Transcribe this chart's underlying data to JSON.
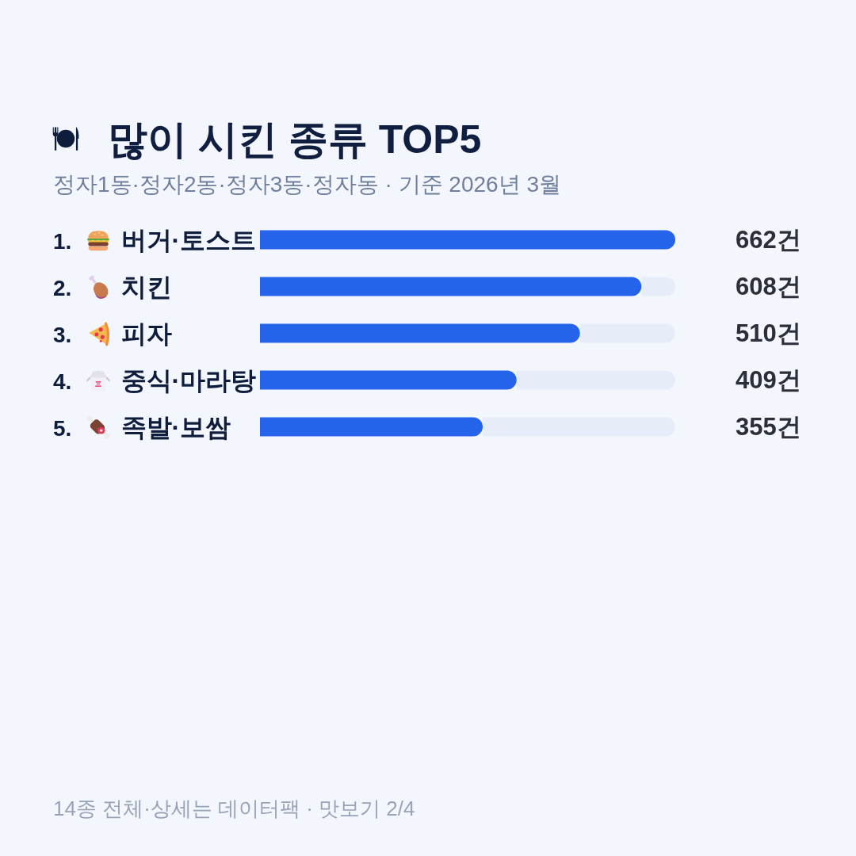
{
  "chart_data": {
    "type": "bar",
    "orientation": "horizontal",
    "title": "많이 시킨 종류 TOP5",
    "subtitle": "정자1동·정자2동·정자3동·정자동 · 기준 2026년 3월",
    "categories": [
      "1. 버거·토스트",
      "2. 치킨",
      "3. 피자",
      "4. 중식·마라탕",
      "5. 족발·보쌈"
    ],
    "values": [
      662,
      608,
      510,
      409,
      355
    ],
    "value_labels": [
      "662건",
      "608건",
      "510건",
      "409건",
      "355건"
    ],
    "color": "#2563eb",
    "tick_labels": "y",
    "annotations": [
      "14종 전체·상세는 데이터팩 · 맛보기 2/4"
    ]
  }
}
